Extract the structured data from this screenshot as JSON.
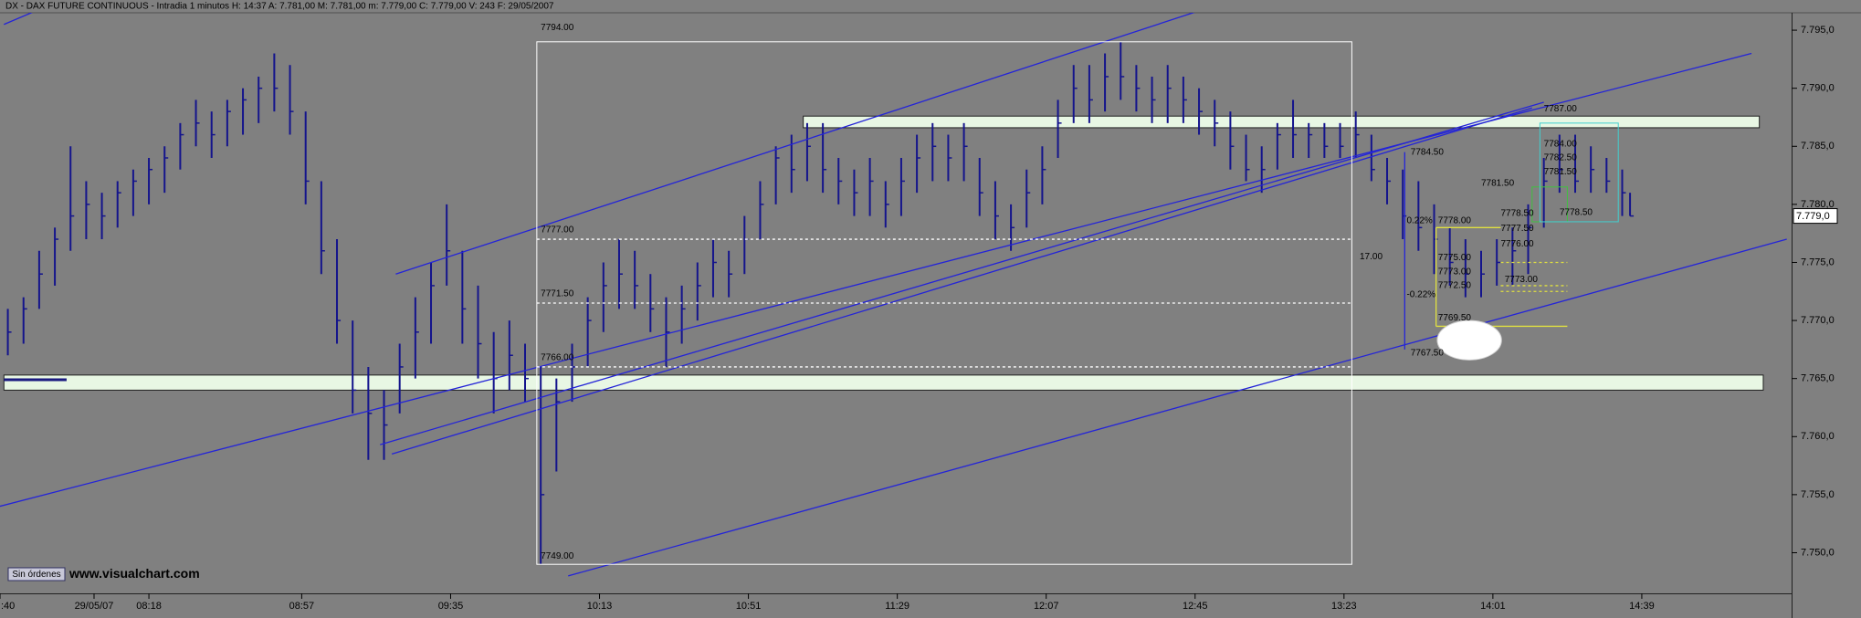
{
  "chart_data": {
    "type": "ohlc",
    "title": "DX - DAX FUTURE CONTINUOUS - Intradia 1 minutos  H: 14:37  A: 7.781,00  M: 7.781,00  m: 7.779,00  C: 7.779,00  V: 243  F: 29/05/2007",
    "color": "#14148c",
    "xlim": [
      0,
      457
    ],
    "ylim": [
      7746.5,
      7796.5
    ],
    "yticks": [
      {
        "value": 7795,
        "label": "7.795,0"
      },
      {
        "value": 7790,
        "label": "7.790,0"
      },
      {
        "value": 7785,
        "label": "7.785,0"
      },
      {
        "value": 7780,
        "label": "7.780,0"
      },
      {
        "value": 7775,
        "label": "7.775,0"
      },
      {
        "value": 7770,
        "label": "7.770,0"
      },
      {
        "value": 7765,
        "label": "7.765,0"
      },
      {
        "value": 7760,
        "label": "7.760,0"
      },
      {
        "value": 7755,
        "label": "7.755,0"
      },
      {
        "value": 7750,
        "label": "7.750,0"
      }
    ],
    "xticks": [
      {
        "value": 0,
        "label": ":40"
      },
      {
        "value": 24,
        "label": "29/05/07"
      },
      {
        "value": 38,
        "label": "08:18"
      },
      {
        "value": 77,
        "label": "08:57"
      },
      {
        "value": 115,
        "label": "09:35"
      },
      {
        "value": 153,
        "label": "10:13"
      },
      {
        "value": 191,
        "label": "10:51"
      },
      {
        "value": 229,
        "label": "11:29"
      },
      {
        "value": 267,
        "label": "12:07"
      },
      {
        "value": 305,
        "label": "12:45"
      },
      {
        "value": 343,
        "label": "13:23"
      },
      {
        "value": 381,
        "label": "14:01"
      },
      {
        "value": 419,
        "label": "14:39"
      }
    ],
    "last": {
      "value": 7779,
      "label": "7.779,0"
    },
    "x": [
      2,
      6,
      10,
      14,
      18,
      22,
      26,
      30,
      34,
      38,
      42,
      46,
      50,
      54,
      58,
      62,
      66,
      70,
      74,
      78,
      82,
      86,
      90,
      94,
      98,
      102,
      106,
      110,
      114,
      118,
      122,
      126,
      130,
      134,
      138,
      142,
      146,
      150,
      154,
      158,
      162,
      166,
      170,
      174,
      178,
      182,
      186,
      190,
      194,
      198,
      202,
      206,
      210,
      214,
      218,
      222,
      226,
      230,
      234,
      238,
      242,
      246,
      250,
      254,
      258,
      262,
      266,
      270,
      274,
      278,
      282,
      286,
      290,
      294,
      298,
      302,
      306,
      310,
      314,
      318,
      322,
      326,
      330,
      334,
      338,
      342,
      346,
      350,
      354,
      358,
      362,
      366,
      370,
      374,
      378,
      382,
      386,
      390,
      394,
      398,
      402,
      406,
      410,
      414,
      416
    ],
    "high": [
      7771,
      7772,
      7776,
      7778,
      7785,
      7782,
      7781,
      7782,
      7783,
      7784,
      7785,
      7787,
      7789,
      7788,
      7789,
      7790,
      7791,
      7793,
      7792,
      7788,
      7782,
      7777,
      7770,
      7766,
      7764,
      7768,
      7772,
      7775,
      7780,
      7776,
      7773,
      7769,
      7770,
      7768,
      7766,
      7765,
      7768,
      7772,
      7775,
      7777,
      7776,
      7774,
      7772,
      7773,
      7775,
      7777,
      7776,
      7779,
      7782,
      7785,
      7786,
      7787,
      7787,
      7784,
      7783,
      7784,
      7782,
      7784,
      7786,
      7787,
      7786,
      7787,
      7784,
      7782,
      7780,
      7783,
      7785,
      7789,
      7792,
      7792,
      7793,
      7794,
      7792,
      7791,
      7792,
      7791,
      7790,
      7789,
      7788,
      7786,
      7785,
      7787,
      7789,
      7787,
      7787,
      7787,
      7788,
      7786,
      7784,
      7783,
      7782,
      7780,
      7778,
      7777,
      7776,
      7777,
      7778,
      7780,
      7784,
      7786,
      7786,
      7785,
      7784,
      7783,
      7781
    ],
    "low": [
      7767,
      7768,
      7771,
      7773,
      7776,
      7777,
      7777,
      7778,
      7779,
      7780,
      7781,
      7783,
      7785,
      7784,
      7785,
      7786,
      7787,
      7788,
      7786,
      7780,
      7774,
      7768,
      7762,
      7758,
      7758,
      7762,
      7765,
      7768,
      7773,
      7768,
      7765,
      7762,
      7764,
      7763,
      7749,
      7757,
      7763,
      7766,
      7769,
      7771,
      7771,
      7769,
      7766,
      7768,
      7770,
      7772,
      7772,
      7774,
      7777,
      7780,
      7781,
      7782,
      7781,
      7780,
      7779,
      7779,
      7778,
      7779,
      7781,
      7782,
      7782,
      7782,
      7779,
      7777,
      7776,
      7778,
      7780,
      7784,
      7787,
      7787,
      7788,
      7789,
      7788,
      7787,
      7787,
      7787,
      7786,
      7785,
      7783,
      7782,
      7781,
      7783,
      7784,
      7784,
      7784,
      7784,
      7784,
      7782,
      7780,
      7777,
      7776,
      7774,
      7773,
      7772,
      7772,
      7773,
      7773,
      7774,
      7778,
      7781,
      7781,
      7781,
      7781,
      7779,
      7779
    ],
    "close": [
      7769,
      7771,
      7774,
      7777,
      7779,
      7780,
      7779,
      7781,
      7782,
      7783,
      7784,
      7786,
      7787,
      7786,
      7788,
      7789,
      7790,
      7790,
      7788,
      7782,
      7776,
      7770,
      7764,
      7762,
      7761,
      7766,
      7769,
      7773,
      7776,
      7771,
      7768,
      7765,
      7767,
      7765,
      7755,
      7763,
      7766,
      7770,
      7773,
      7774,
      7773,
      7771,
      7769,
      7771,
      7773,
      7775,
      7774,
      7777,
      7780,
      7784,
      7783,
      7785,
      7783,
      7782,
      7781,
      7782,
      7780,
      7782,
      7784,
      7785,
      7784,
      7785,
      7781,
      7779,
      7778,
      7781,
      7783,
      7787,
      7790,
      7789,
      7791,
      7791,
      7790,
      7789,
      7790,
      7789,
      7788,
      7787,
      7785,
      7783,
      7783,
      7786,
      7786,
      7786,
      7785,
      7785,
      7786,
      7783,
      7782,
      7779,
      7778,
      7777,
      7775,
      7774,
      7774,
      7775,
      7776,
      7778,
      7782,
      7783,
      7782,
      7783,
      7782,
      7781,
      7779
    ],
    "drawings": [
      {
        "kind": "zone",
        "x": [
          205,
          449
        ],
        "y": [
          7786.6,
          7787.6
        ],
        "color": "#e8f7e4"
      },
      {
        "kind": "zone",
        "x": [
          1,
          450
        ],
        "y": [
          7764,
          7765.3
        ],
        "color": "#e8f7e4"
      },
      {
        "kind": "line",
        "x": [
          0,
          447
        ],
        "y": [
          7754,
          7793
        ],
        "color": "#2424d8"
      },
      {
        "kind": "line",
        "x": [
          101,
          309
        ],
        "y": [
          7774,
          7797
        ],
        "color": "#2424d8"
      },
      {
        "kind": "line",
        "x": [
          100,
          391
        ],
        "y": [
          7758.5,
          7788.3
        ],
        "color": "#2424d8"
      },
      {
        "kind": "line",
        "x": [
          97,
          394
        ],
        "y": [
          7759.3,
          7788.8
        ],
        "color": "#2424d8"
      },
      {
        "kind": "line",
        "x": [
          145,
          456
        ],
        "y": [
          7748,
          7777
        ],
        "color": "#2424d8"
      },
      {
        "kind": "line",
        "x": [
          1,
          15
        ],
        "y": [
          7795.5,
          7797.5
        ],
        "color": "#2424d8"
      },
      {
        "kind": "line",
        "x": [
          1,
          17
        ],
        "y": [
          7764.9,
          7764.9
        ],
        "color": "#1a1a80",
        "width": 3
      },
      {
        "kind": "rect",
        "x": [
          137,
          345
        ],
        "y": [
          7749,
          7794
        ],
        "color": "#ffffff"
      },
      {
        "kind": "line",
        "x": [
          137,
          345
        ],
        "y": [
          7777,
          7777
        ],
        "color": "#ffffff",
        "dashed": true
      },
      {
        "kind": "line",
        "x": [
          137,
          345
        ],
        "y": [
          7771.5,
          7771.5
        ],
        "color": "#ffffff",
        "dashed": true
      },
      {
        "kind": "line",
        "x": [
          137,
          345
        ],
        "y": [
          7766,
          7766
        ],
        "color": "#ffffff",
        "dashed": true
      },
      {
        "kind": "line",
        "x": [
          358.5,
          358.5
        ],
        "y": [
          7767.5,
          7784.5
        ],
        "color": "#2424d8"
      },
      {
        "kind": "line",
        "x": [
          366.5,
          366.5
        ],
        "y": [
          7769.5,
          7778
        ],
        "color": "#e0e040"
      },
      {
        "kind": "line",
        "x": [
          366.5,
          383
        ],
        "y": [
          7778,
          7778
        ],
        "color": "#e0e040"
      },
      {
        "kind": "line",
        "x": [
          366.5,
          400
        ],
        "y": [
          7769.5,
          7769.5
        ],
        "color": "#e0e040"
      },
      {
        "kind": "line",
        "x": [
          383,
          400
        ],
        "y": [
          7775,
          7775
        ],
        "color": "#e0e040",
        "dashed": true
      },
      {
        "kind": "line",
        "x": [
          383,
          400
        ],
        "y": [
          7773,
          7773
        ],
        "color": "#e0e040",
        "dashed": true
      },
      {
        "kind": "line",
        "x": [
          383,
          400
        ],
        "y": [
          7772.5,
          7772.5
        ],
        "color": "#e0e040",
        "dashed": true
      },
      {
        "kind": "rect",
        "x": [
          391,
          400
        ],
        "y": [
          7778.5,
          7781.5
        ],
        "color": "#40c040"
      },
      {
        "kind": "rect",
        "x": [
          393,
          413
        ],
        "y": [
          7778.5,
          7787
        ],
        "color": "#40d0d0"
      },
      {
        "kind": "ellipse",
        "x": [
          375
        ],
        "y": [
          7768.3
        ],
        "rx": 8.2,
        "ry": 1.7,
        "color": "#ffffff"
      }
    ],
    "annotation_color": "#1414c8",
    "annotations": [
      {
        "text": "7794.00",
        "x": 138,
        "y": 7795.2
      },
      {
        "text": "7777.00",
        "x": 138,
        "y": 7777.8
      },
      {
        "text": "7771.50",
        "x": 138,
        "y": 7772.3
      },
      {
        "text": "7766.00",
        "x": 138,
        "y": 7766.8
      },
      {
        "text": "7749.00",
        "x": 138,
        "y": 7749.7
      },
      {
        "text": "17.00",
        "x": 347,
        "y": 7775.5
      },
      {
        "text": "7784.50",
        "x": 360,
        "y": 7784.5
      },
      {
        "text": "7767.50",
        "x": 360,
        "y": 7767.2
      },
      {
        "text": "0.22%",
        "x": 359,
        "y": 7778.6
      },
      {
        "text": "-0.22%",
        "x": 359,
        "y": 7772.2
      },
      {
        "text": "7778.00",
        "x": 367,
        "y": 7778.6
      },
      {
        "text": "7775.00",
        "x": 367,
        "y": 7775.4
      },
      {
        "text": "7773.00",
        "x": 367,
        "y": 7774.2
      },
      {
        "text": "7772.50",
        "x": 367,
        "y": 7773
      },
      {
        "text": "7773.00",
        "x": 384,
        "y": 7773.5
      },
      {
        "text": "7769.50",
        "x": 367,
        "y": 7770.2
      },
      {
        "text": "7781.50",
        "x": 378,
        "y": 7781.8
      },
      {
        "text": "7778.50",
        "x": 383,
        "y": 7779.2
      },
      {
        "text": "7777.50",
        "x": 383,
        "y": 7777.9
      },
      {
        "text": "7776.00",
        "x": 383,
        "y": 7776.6
      },
      {
        "text": "7787.00",
        "x": 394,
        "y": 7788.2
      },
      {
        "text": "7784.00",
        "x": 394,
        "y": 7785.2
      },
      {
        "text": "7782.50",
        "x": 394,
        "y": 7784
      },
      {
        "text": "7781.50",
        "x": 394,
        "y": 7782.8
      },
      {
        "text": "7778.50",
        "x": 398,
        "y": 7779.3
      }
    ]
  },
  "ui": {
    "button": "Sin órdenes",
    "watermark": "www.visualchart.com"
  }
}
